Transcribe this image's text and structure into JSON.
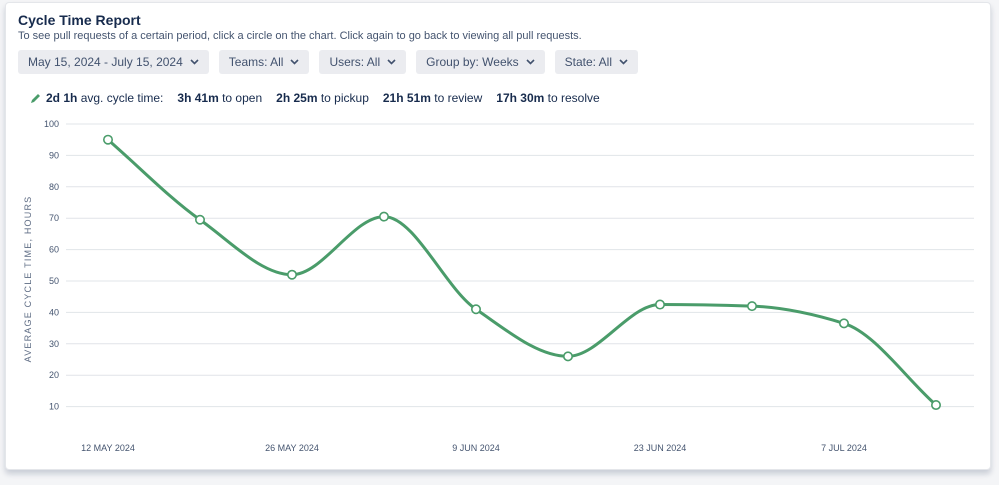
{
  "header": {
    "title": "Cycle Time Report",
    "subtitle": "To see pull requests of a certain period, click a circle on the chart. Click again to go back to viewing all pull requests."
  },
  "filters": [
    {
      "label": "May 15, 2024 - July 15, 2024"
    },
    {
      "label": "Teams: All"
    },
    {
      "label": "Users: All"
    },
    {
      "label": "Group by: Weeks"
    },
    {
      "label": "State: All"
    }
  ],
  "stats": {
    "avg_value": "2d 1h",
    "avg_label": "avg. cycle time:",
    "open_value": "3h 41m",
    "open_label": "to open",
    "pickup_value": "2h 25m",
    "pickup_label": "to pickup",
    "review_value": "21h 51m",
    "review_label": "to review",
    "resolve_value": "17h 30m",
    "resolve_label": "to resolve"
  },
  "colors": {
    "line": "#4a9c6a",
    "grid": "#e1e4e8",
    "point_fill": "#ffffff"
  },
  "chart_data": {
    "type": "line",
    "ylabel": "AVERAGE CYCLE TIME, HOURS",
    "xlabel": "",
    "ylim": [
      0,
      100
    ],
    "yticks": [
      10,
      20,
      30,
      40,
      50,
      60,
      70,
      80,
      90,
      100
    ],
    "grid": true,
    "x_tick_labels": [
      "12 MAY 2024",
      "26 MAY 2024",
      "9 JUN 2024",
      "23 JUN 2024",
      "7 JUL 2024"
    ],
    "x_tick_dates": [
      "2024-05-12",
      "2024-05-26",
      "2024-06-09",
      "2024-06-23",
      "2024-07-07"
    ],
    "series": [
      {
        "x": [
          "2024-05-12",
          "2024-05-19",
          "2024-05-26",
          "2024-06-02",
          "2024-06-09",
          "2024-06-16",
          "2024-06-23",
          "2024-06-30",
          "2024-07-07",
          "2024-07-14"
        ],
        "values": [
          95,
          69.5,
          52,
          70.5,
          41,
          26,
          42.5,
          42,
          36.5,
          10.5
        ]
      }
    ]
  }
}
